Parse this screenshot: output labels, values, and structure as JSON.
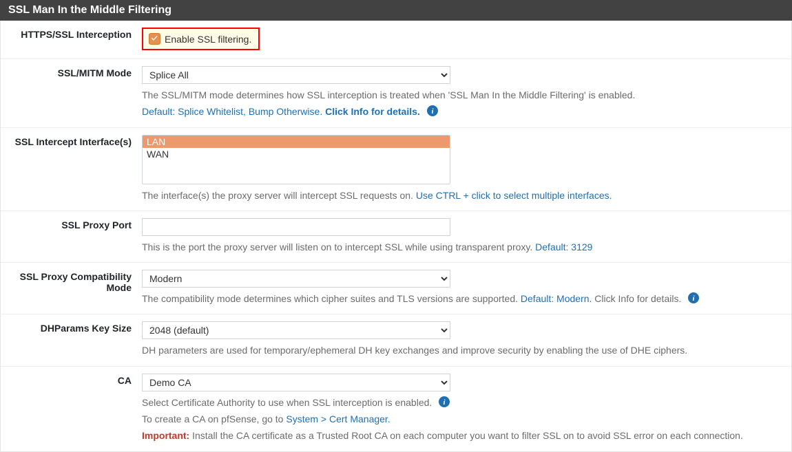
{
  "colors": {
    "header_bg": "#424242",
    "header_text": "#ffffff",
    "link": "#1f6fb2",
    "important": "#c0392b",
    "highlight_border": "#ff0000",
    "highlight_bg": "#fffde7",
    "checkbox_bg": "#e78f4e",
    "multiselect_selected_bg": "#ee996d",
    "multiselect_selected_text": "#ffffff",
    "help_text": "#6b6b6b",
    "border": "#e5e5e5"
  },
  "panel": {
    "title": "SSL Man In the Middle Filtering"
  },
  "rows": {
    "enable": {
      "label": "HTTPS/SSL Interception",
      "checkbox_label": "Enable SSL filtering.",
      "checked": true
    },
    "mode": {
      "label": "SSL/MITM Mode",
      "value": "Splice All",
      "options": [
        "Splice All"
      ],
      "help_plain": "The SSL/MITM mode determines how SSL interception is treated when 'SSL Man In the Middle Filtering' is enabled.",
      "help_link_prefix": "Default: Splice Whitelist, Bump Otherwise.",
      "help_link_bold": "Click Info for details."
    },
    "interfaces": {
      "label": "SSL Intercept Interface(s)",
      "options": [
        "LAN",
        "WAN"
      ],
      "selected": [
        "LAN"
      ],
      "help_plain": "The interface(s) the proxy server will intercept SSL requests on. ",
      "help_link": "Use CTRL + click to select multiple interfaces."
    },
    "port": {
      "label": "SSL Proxy Port",
      "value": "",
      "help_plain": "This is the port the proxy server will listen on to intercept SSL while using transparent proxy. ",
      "help_link": "Default: 3129"
    },
    "compat": {
      "label": "SSL Proxy Compatibility Mode",
      "value": "Modern",
      "options": [
        "Modern"
      ],
      "help_plain": "The compatibility mode determines which cipher suites and TLS versions are supported. ",
      "help_link": "Default: Modern.",
      "help_tail": " Click Info for details."
    },
    "dhparams": {
      "label": "DHParams Key Size",
      "value": "2048 (default)",
      "options": [
        "2048 (default)"
      ],
      "help_plain": "DH parameters are used for temporary/ephemeral DH key exchanges and improve security by enabling the use of DHE ciphers."
    },
    "ca": {
      "label": "CA",
      "value": "Demo CA",
      "options": [
        "Demo CA"
      ],
      "help_plain": "Select Certificate Authority to use when SSL interception is enabled.",
      "create_ca_prefix": "To create a CA on pfSense, go to ",
      "create_ca_link": "System > Cert Manager.",
      "important_label": "Important:",
      "important_text": " Install the CA certificate as a Trusted Root CA on each computer you want to filter SSL on to avoid SSL error on each connection."
    }
  }
}
